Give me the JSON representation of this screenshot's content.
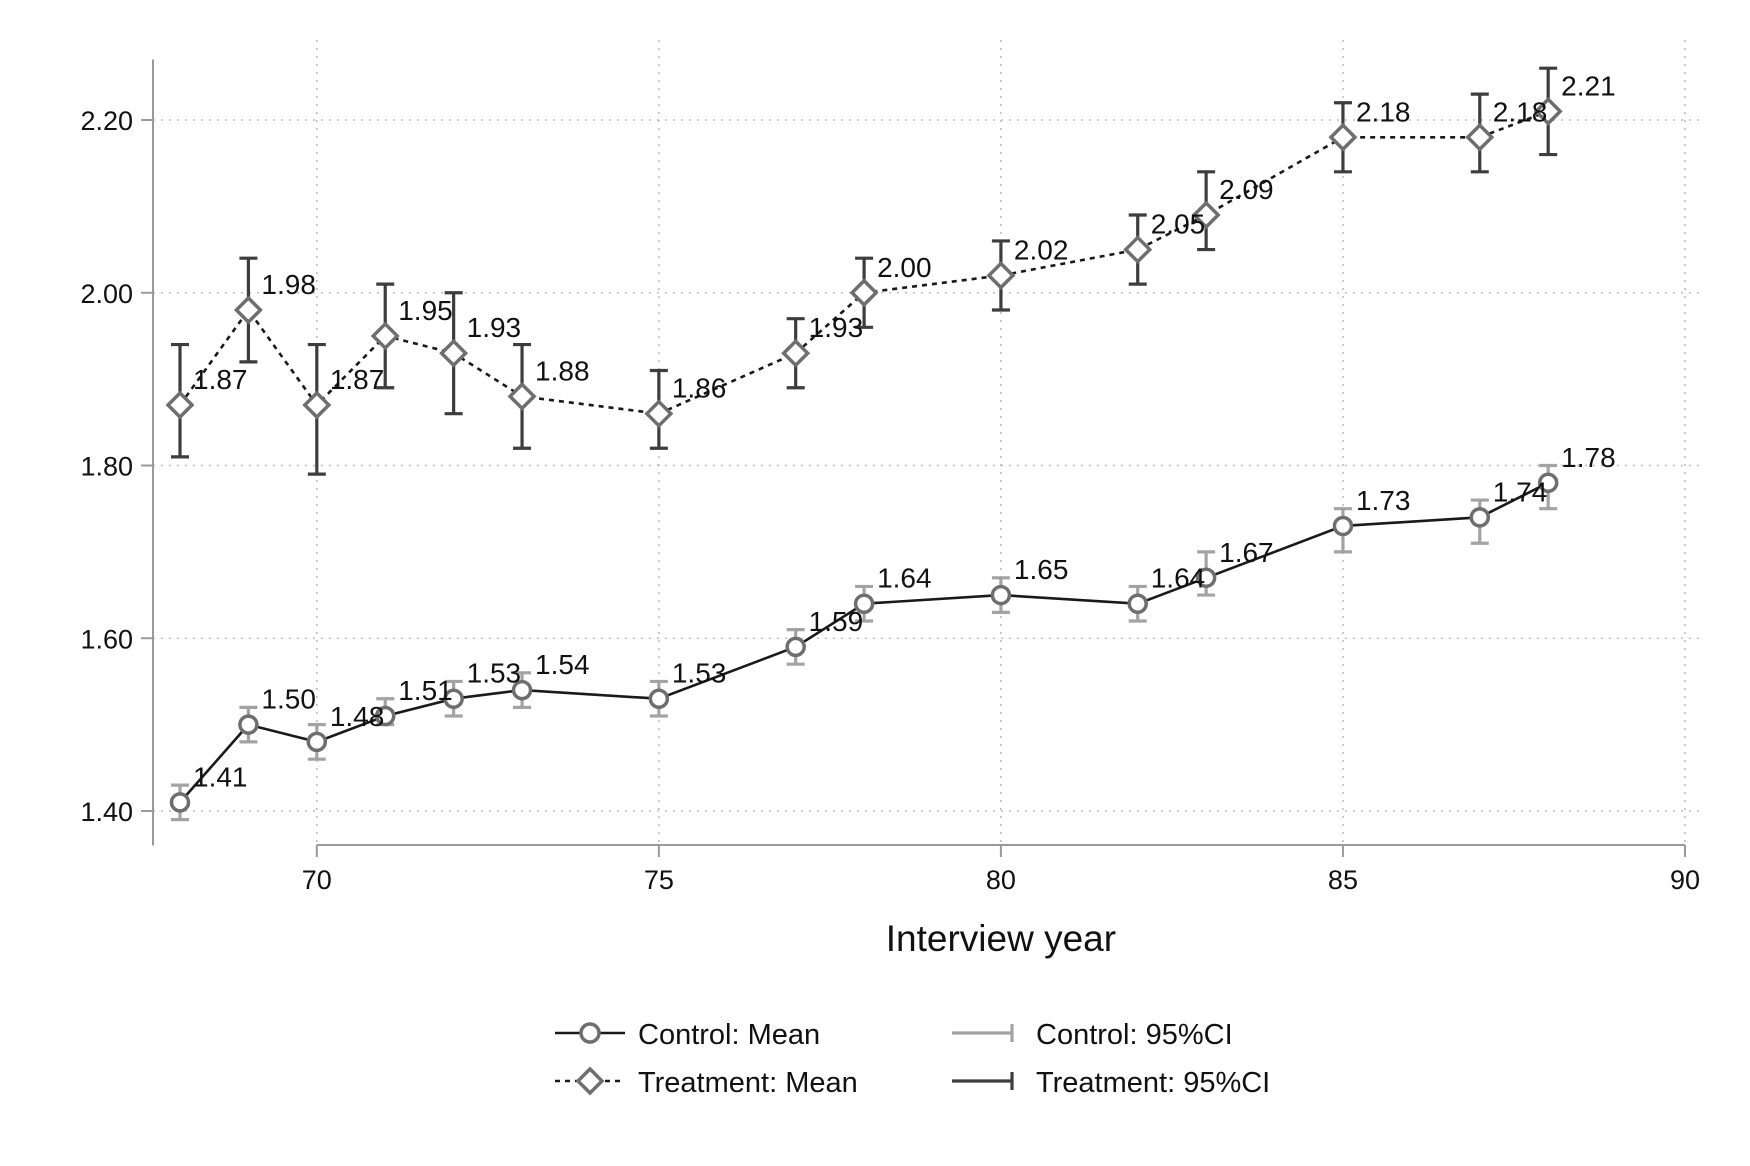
{
  "chart_data": {
    "type": "line",
    "xlabel": "Interview year",
    "ylabel": "",
    "xlim": [
      68,
      90
    ],
    "ylim": [
      1.36,
      2.27
    ],
    "x_ticks": [
      70,
      75,
      80,
      85,
      90
    ],
    "y_ticks": [
      "1.40",
      "1.60",
      "1.80",
      "2.00",
      "2.20"
    ],
    "grid": true,
    "legend_position": "bottom",
    "series": [
      {
        "name": "Control: Mean",
        "ci_name": "Control: 95%CI",
        "marker": "circle",
        "line_style": "solid",
        "line_color": "#1a1a1a",
        "marker_color": "#6e6e6e",
        "ci_color": "#a3a3a3",
        "points": [
          {
            "x": 68,
            "y": 1.41,
            "lo": 1.39,
            "hi": 1.43,
            "label": "1.41"
          },
          {
            "x": 69,
            "y": 1.5,
            "lo": 1.48,
            "hi": 1.52,
            "label": "1.50"
          },
          {
            "x": 70,
            "y": 1.48,
            "lo": 1.46,
            "hi": 1.5,
            "label": "1.48"
          },
          {
            "x": 71,
            "y": 1.51,
            "lo": 1.5,
            "hi": 1.53,
            "label": "1.51"
          },
          {
            "x": 72,
            "y": 1.53,
            "lo": 1.51,
            "hi": 1.55,
            "label": "1.53"
          },
          {
            "x": 73,
            "y": 1.54,
            "lo": 1.52,
            "hi": 1.56,
            "label": "1.54"
          },
          {
            "x": 75,
            "y": 1.53,
            "lo": 1.51,
            "hi": 1.55,
            "label": "1.53"
          },
          {
            "x": 77,
            "y": 1.59,
            "lo": 1.57,
            "hi": 1.61,
            "label": "1.59"
          },
          {
            "x": 78,
            "y": 1.64,
            "lo": 1.62,
            "hi": 1.66,
            "label": "1.64"
          },
          {
            "x": 80,
            "y": 1.65,
            "lo": 1.63,
            "hi": 1.67,
            "label": "1.65"
          },
          {
            "x": 82,
            "y": 1.64,
            "lo": 1.62,
            "hi": 1.66,
            "label": "1.64"
          },
          {
            "x": 83,
            "y": 1.67,
            "lo": 1.65,
            "hi": 1.7,
            "label": "1.67"
          },
          {
            "x": 85,
            "y": 1.73,
            "lo": 1.7,
            "hi": 1.75,
            "label": "1.73"
          },
          {
            "x": 87,
            "y": 1.74,
            "lo": 1.71,
            "hi": 1.76,
            "label": "1.74"
          },
          {
            "x": 88,
            "y": 1.78,
            "lo": 1.75,
            "hi": 1.8,
            "label": "1.78"
          }
        ]
      },
      {
        "name": "Treatment: Mean",
        "ci_name": "Treatment: 95%CI",
        "marker": "diamond",
        "line_style": "dashed",
        "line_color": "#1a1a1a",
        "marker_color": "#6e6e6e",
        "ci_color": "#3d3d3d",
        "points": [
          {
            "x": 68,
            "y": 1.87,
            "lo": 1.81,
            "hi": 1.94,
            "label": "1.87"
          },
          {
            "x": 69,
            "y": 1.98,
            "lo": 1.92,
            "hi": 2.04,
            "label": "1.98"
          },
          {
            "x": 70,
            "y": 1.87,
            "lo": 1.79,
            "hi": 1.94,
            "label": "1.87"
          },
          {
            "x": 71,
            "y": 1.95,
            "lo": 1.89,
            "hi": 2.01,
            "label": "1.95"
          },
          {
            "x": 72,
            "y": 1.93,
            "lo": 1.86,
            "hi": 2.0,
            "label": "1.93"
          },
          {
            "x": 73,
            "y": 1.88,
            "lo": 1.82,
            "hi": 1.94,
            "label": "1.88"
          },
          {
            "x": 75,
            "y": 1.86,
            "lo": 1.82,
            "hi": 1.91,
            "label": "1.86"
          },
          {
            "x": 77,
            "y": 1.93,
            "lo": 1.89,
            "hi": 1.97,
            "label": "1.93"
          },
          {
            "x": 78,
            "y": 2.0,
            "lo": 1.96,
            "hi": 2.04,
            "label": "2.00"
          },
          {
            "x": 80,
            "y": 2.02,
            "lo": 1.98,
            "hi": 2.06,
            "label": "2.02"
          },
          {
            "x": 82,
            "y": 2.05,
            "lo": 2.01,
            "hi": 2.09,
            "label": "2.05"
          },
          {
            "x": 83,
            "y": 2.09,
            "lo": 2.05,
            "hi": 2.14,
            "label": "2.09"
          },
          {
            "x": 85,
            "y": 2.18,
            "lo": 2.14,
            "hi": 2.22,
            "label": "2.18"
          },
          {
            "x": 87,
            "y": 2.18,
            "lo": 2.14,
            "hi": 2.23,
            "label": "2.18"
          },
          {
            "x": 88,
            "y": 2.21,
            "lo": 2.16,
            "hi": 2.26,
            "label": "2.21"
          }
        ]
      }
    ]
  }
}
